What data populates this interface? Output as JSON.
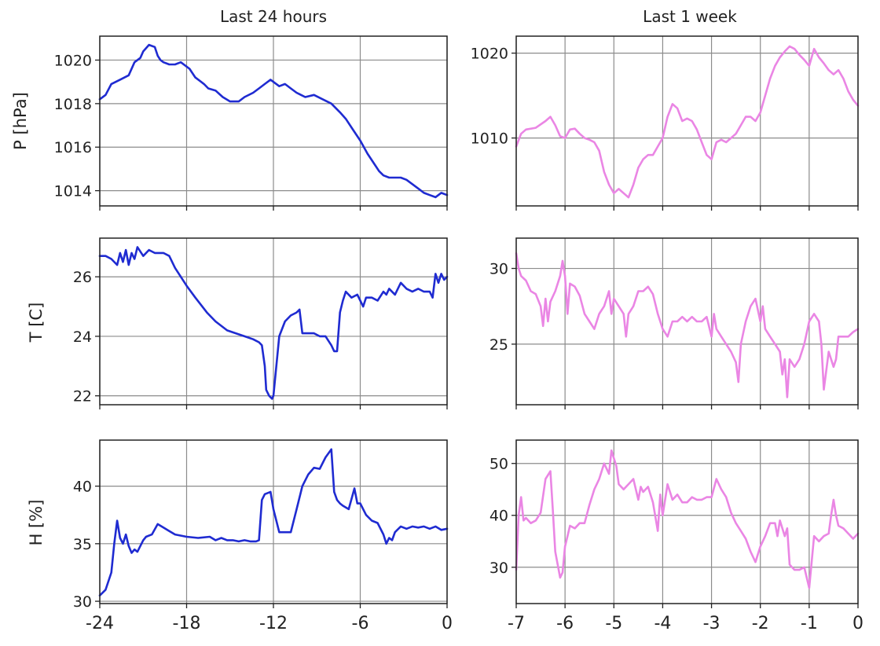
{
  "figure": {
    "columns": [
      {
        "title": "Last 24 hours",
        "color": "#1f2bd1"
      },
      {
        "title": "Last 1 week",
        "color": "#ea86e4"
      }
    ],
    "row_labels": [
      "P [hPa]",
      "T [C]",
      "H [%]"
    ]
  },
  "chart_data": [
    {
      "type": "line",
      "title": "Last 24 hours",
      "xlabel": "",
      "ylabel": "P [hPa]",
      "xlim": [
        -24,
        0
      ],
      "ylim": [
        1013.3,
        1021.1
      ],
      "grid": true,
      "xticks": [
        -24,
        -18,
        -12,
        -6,
        0
      ],
      "yticks": [
        1014,
        1016,
        1018,
        1020
      ],
      "xtick_labels_shown": false,
      "series": [
        {
          "color": "#1f2bd1",
          "x": [
            -24,
            -23.6,
            -23.2,
            -22.6,
            -22,
            -21.6,
            -21.2,
            -21,
            -20.6,
            -20.2,
            -20,
            -19.8,
            -19.6,
            -19.2,
            -18.8,
            -18.4,
            -17.8,
            -17.4,
            -16.8,
            -16.5,
            -16,
            -15.5,
            -15,
            -14.4,
            -14,
            -13.4,
            -13,
            -12.6,
            -12.2,
            -11.6,
            -11.2,
            -10.8,
            -10.4,
            -9.8,
            -9.2,
            -8.6,
            -8,
            -7.4,
            -7,
            -6.5,
            -6,
            -5.5,
            -5,
            -4.7,
            -4.4,
            -4,
            -3.6,
            -3.2,
            -2.8,
            -2.4,
            -2,
            -1.6,
            -1.2,
            -0.8,
            -0.4,
            0
          ],
          "y": [
            1018.2,
            1018.4,
            1018.9,
            1019.1,
            1019.3,
            1019.9,
            1020.1,
            1020.4,
            1020.7,
            1020.6,
            1020.2,
            1020.0,
            1019.9,
            1019.8,
            1019.8,
            1019.9,
            1019.6,
            1019.2,
            1018.9,
            1018.7,
            1018.6,
            1018.3,
            1018.1,
            1018.1,
            1018.3,
            1018.5,
            1018.7,
            1018.9,
            1019.1,
            1018.8,
            1018.9,
            1018.7,
            1018.5,
            1018.3,
            1018.4,
            1018.2,
            1018.0,
            1017.6,
            1017.3,
            1016.8,
            1016.3,
            1015.7,
            1015.2,
            1014.9,
            1014.7,
            1014.6,
            1014.6,
            1014.6,
            1014.5,
            1014.3,
            1014.1,
            1013.9,
            1013.8,
            1013.7,
            1013.9,
            1013.8
          ]
        }
      ]
    },
    {
      "type": "line",
      "title": "Last 1 week",
      "xlabel": "",
      "ylabel": "",
      "xlim": [
        -7,
        0
      ],
      "ylim": [
        1002,
        1022
      ],
      "grid": true,
      "xticks": [
        -7,
        -6,
        -5,
        -4,
        -3,
        -2,
        -1,
        0
      ],
      "yticks": [
        1010,
        1020
      ],
      "xtick_labels_shown": false,
      "series": [
        {
          "color": "#ea86e4",
          "x": [
            -7,
            -6.9,
            -6.8,
            -6.6,
            -6.4,
            -6.3,
            -6.2,
            -6.1,
            -6,
            -5.9,
            -5.8,
            -5.7,
            -5.6,
            -5.5,
            -5.4,
            -5.3,
            -5.2,
            -5.1,
            -5,
            -4.9,
            -4.8,
            -4.7,
            -4.6,
            -4.5,
            -4.4,
            -4.3,
            -4.2,
            -4.1,
            -4,
            -3.9,
            -3.8,
            -3.7,
            -3.6,
            -3.5,
            -3.4,
            -3.3,
            -3.2,
            -3.1,
            -3,
            -2.9,
            -2.8,
            -2.7,
            -2.6,
            -2.5,
            -2.4,
            -2.3,
            -2.2,
            -2.1,
            -2,
            -1.9,
            -1.8,
            -1.7,
            -1.6,
            -1.5,
            -1.4,
            -1.3,
            -1.2,
            -1.1,
            -1,
            -0.9,
            -0.8,
            -0.7,
            -0.6,
            -0.5,
            -0.4,
            -0.3,
            -0.2,
            -0.1,
            0
          ],
          "y": [
            1009,
            1010.5,
            1011,
            1011.2,
            1012,
            1012.5,
            1011.5,
            1010.2,
            1010,
            1011,
            1011.1,
            1010.5,
            1010,
            1009.8,
            1009.5,
            1008.5,
            1006,
            1004.5,
            1003.5,
            1004,
            1003.5,
            1003,
            1004.5,
            1006.5,
            1007.5,
            1008,
            1008,
            1009,
            1010,
            1012.5,
            1014,
            1013.5,
            1012,
            1012.3,
            1012,
            1011,
            1009.5,
            1008,
            1007.5,
            1009.5,
            1009.8,
            1009.5,
            1010,
            1010.5,
            1011.5,
            1012.5,
            1012.5,
            1012,
            1013,
            1015,
            1017,
            1018.5,
            1019.5,
            1020.2,
            1020.8,
            1020.5,
            1019.8,
            1019.2,
            1018.5,
            1020.5,
            1019.5,
            1018.8,
            1018,
            1017.5,
            1018,
            1017,
            1015.5,
            1014.5,
            1013.8
          ]
        }
      ]
    },
    {
      "type": "line",
      "title": "",
      "xlabel": "",
      "ylabel": "T [C]",
      "xlim": [
        -24,
        0
      ],
      "ylim": [
        21.7,
        27.3
      ],
      "grid": true,
      "xticks": [
        -24,
        -18,
        -12,
        -6,
        0
      ],
      "yticks": [
        22,
        24,
        26
      ],
      "xtick_labels_shown": false,
      "series": [
        {
          "color": "#1f2bd1",
          "x": [
            -24,
            -23.6,
            -23.2,
            -22.8,
            -22.6,
            -22.4,
            -22.2,
            -22,
            -21.8,
            -21.6,
            -21.4,
            -21,
            -20.6,
            -20.2,
            -19.8,
            -19.6,
            -19.2,
            -18.8,
            -18,
            -17.4,
            -16.6,
            -16,
            -15.2,
            -14.6,
            -14,
            -13.4,
            -13,
            -12.8,
            -12.6,
            -12.5,
            -12.3,
            -12.1,
            -12,
            -11.6,
            -11.2,
            -10.8,
            -10.4,
            -10.2,
            -10,
            -9.6,
            -9.2,
            -8.8,
            -8.4,
            -8,
            -7.8,
            -7.6,
            -7.4,
            -7.2,
            -7,
            -6.6,
            -6.2,
            -6,
            -5.8,
            -5.6,
            -5.2,
            -4.8,
            -4.4,
            -4.2,
            -4,
            -3.6,
            -3.2,
            -2.8,
            -2.4,
            -2,
            -1.6,
            -1.2,
            -1,
            -0.8,
            -0.6,
            -0.4,
            -0.2,
            0
          ],
          "y": [
            26.7,
            26.7,
            26.6,
            26.4,
            26.8,
            26.5,
            26.9,
            26.4,
            26.8,
            26.6,
            27.0,
            26.7,
            26.9,
            26.8,
            26.8,
            26.8,
            26.7,
            26.3,
            25.7,
            25.3,
            24.8,
            24.5,
            24.2,
            24.1,
            24.0,
            23.9,
            23.8,
            23.7,
            23.0,
            22.2,
            22.0,
            21.9,
            22.0,
            24.0,
            24.5,
            24.7,
            24.8,
            24.9,
            24.1,
            24.1,
            24.1,
            24.0,
            24.0,
            23.7,
            23.5,
            23.5,
            24.8,
            25.2,
            25.5,
            25.3,
            25.4,
            25.2,
            25.0,
            25.3,
            25.3,
            25.2,
            25.5,
            25.4,
            25.6,
            25.4,
            25.8,
            25.6,
            25.5,
            25.6,
            25.5,
            25.5,
            25.3,
            26.1,
            25.8,
            26.1,
            25.9,
            26.0
          ]
        }
      ]
    },
    {
      "type": "line",
      "title": "",
      "xlabel": "",
      "ylabel": "",
      "xlim": [
        -7,
        0
      ],
      "ylim": [
        21,
        32
      ],
      "grid": true,
      "xticks": [
        -7,
        -6,
        -5,
        -4,
        -3,
        -2,
        -1,
        0
      ],
      "yticks": [
        25,
        30
      ],
      "xtick_labels_shown": false,
      "series": [
        {
          "color": "#ea86e4",
          "x": [
            -7,
            -6.95,
            -6.9,
            -6.8,
            -6.7,
            -6.6,
            -6.5,
            -6.45,
            -6.4,
            -6.35,
            -6.3,
            -6.2,
            -6.1,
            -6.05,
            -6,
            -5.95,
            -5.9,
            -5.8,
            -5.7,
            -5.6,
            -5.5,
            -5.4,
            -5.3,
            -5.2,
            -5.1,
            -5.05,
            -5,
            -4.9,
            -4.8,
            -4.75,
            -4.7,
            -4.6,
            -4.5,
            -4.4,
            -4.3,
            -4.2,
            -4.1,
            -4,
            -3.9,
            -3.8,
            -3.7,
            -3.6,
            -3.5,
            -3.4,
            -3.3,
            -3.2,
            -3.1,
            -3,
            -2.95,
            -2.9,
            -2.8,
            -2.7,
            -2.6,
            -2.5,
            -2.45,
            -2.4,
            -2.3,
            -2.2,
            -2.1,
            -2,
            -1.95,
            -1.9,
            -1.8,
            -1.7,
            -1.6,
            -1.55,
            -1.5,
            -1.45,
            -1.4,
            -1.3,
            -1.2,
            -1.1,
            -1,
            -0.9,
            -0.8,
            -0.75,
            -0.7,
            -0.6,
            -0.5,
            -0.45,
            -0.4,
            -0.3,
            -0.2,
            -0.1,
            0
          ],
          "y": [
            31,
            30,
            29.5,
            29.2,
            28.5,
            28.3,
            27.5,
            26.2,
            28,
            26.5,
            27.8,
            28.5,
            29.5,
            30.5,
            29.5,
            27,
            29,
            28.8,
            28.2,
            27,
            26.5,
            26,
            27,
            27.5,
            28.5,
            27,
            28,
            27.5,
            27,
            25.5,
            27,
            27.5,
            28.5,
            28.5,
            28.8,
            28.3,
            27,
            26,
            25.5,
            26.5,
            26.5,
            26.8,
            26.5,
            26.8,
            26.5,
            26.5,
            26.8,
            25.5,
            27,
            26,
            25.5,
            25,
            24.5,
            23.8,
            22.5,
            25,
            26.5,
            27.5,
            28,
            26.5,
            27.5,
            26,
            25.5,
            25,
            24.5,
            23,
            24,
            21.5,
            24,
            23.5,
            24,
            25,
            26.5,
            27,
            26.5,
            25,
            22,
            24.5,
            23.5,
            24,
            25.5,
            25.5,
            25.5,
            25.8,
            26
          ]
        }
      ]
    },
    {
      "type": "line",
      "title": "",
      "xlabel": "",
      "ylabel": "H [%]",
      "xlim": [
        -24,
        0
      ],
      "ylim": [
        29.8,
        44
      ],
      "grid": true,
      "xticks": [
        -24,
        -18,
        -12,
        -6,
        0
      ],
      "yticks": [
        30,
        35,
        40
      ],
      "xtick_labels": [
        "-24",
        "-18",
        "-12",
        "-6",
        "0"
      ],
      "series": [
        {
          "color": "#1f2bd1",
          "x": [
            -24,
            -23.6,
            -23.2,
            -23,
            -22.8,
            -22.6,
            -22.4,
            -22.2,
            -22,
            -21.8,
            -21.6,
            -21.4,
            -21,
            -20.8,
            -20.4,
            -20,
            -19.6,
            -19.2,
            -18.8,
            -18,
            -17.2,
            -16.4,
            -16,
            -15.6,
            -15.2,
            -14.8,
            -14.4,
            -14,
            -13.6,
            -13.2,
            -13,
            -12.8,
            -12.6,
            -12.2,
            -12,
            -11.6,
            -11.2,
            -10.8,
            -10.4,
            -10,
            -9.6,
            -9.2,
            -8.8,
            -8.4,
            -8,
            -7.8,
            -7.6,
            -7.4,
            -7.2,
            -6.8,
            -6.4,
            -6.2,
            -6,
            -5.6,
            -5.2,
            -4.8,
            -4.4,
            -4.2,
            -4,
            -3.8,
            -3.6,
            -3.2,
            -2.8,
            -2.4,
            -2,
            -1.6,
            -1.2,
            -0.8,
            -0.4,
            0
          ],
          "y": [
            30.5,
            31,
            32.5,
            35,
            37,
            35.5,
            35,
            35.8,
            34.8,
            34.2,
            34.5,
            34.3,
            35.3,
            35.6,
            35.8,
            36.7,
            36.4,
            36.1,
            35.8,
            35.6,
            35.5,
            35.6,
            35.3,
            35.5,
            35.3,
            35.3,
            35.2,
            35.3,
            35.2,
            35.2,
            35.3,
            38.8,
            39.3,
            39.5,
            38,
            36,
            36,
            36,
            38,
            40,
            41,
            41.6,
            41.5,
            42.5,
            43.2,
            39.5,
            38.8,
            38.5,
            38.3,
            38,
            39.8,
            38.5,
            38.5,
            37.5,
            37,
            36.8,
            35.8,
            35,
            35.5,
            35.3,
            36,
            36.5,
            36.3,
            36.5,
            36.4,
            36.5,
            36.3,
            36.5,
            36.2,
            36.3
          ]
        }
      ]
    },
    {
      "type": "line",
      "title": "",
      "xlabel": "",
      "ylabel": "",
      "xlim": [
        -7,
        0
      ],
      "ylim": [
        23,
        54.5
      ],
      "grid": true,
      "xticks": [
        -7,
        -6,
        -5,
        -4,
        -3,
        -2,
        -1,
        0
      ],
      "yticks": [
        30,
        40,
        50
      ],
      "xtick_labels": [
        "-7",
        "-6",
        "-5",
        "-4",
        "-3",
        "-2",
        "-1",
        "0"
      ],
      "series": [
        {
          "color": "#ea86e4",
          "x": [
            -7,
            -6.95,
            -6.9,
            -6.85,
            -6.8,
            -6.7,
            -6.6,
            -6.5,
            -6.4,
            -6.3,
            -6.25,
            -6.2,
            -6.1,
            -6.05,
            -6,
            -5.95,
            -5.9,
            -5.8,
            -5.7,
            -5.6,
            -5.5,
            -5.4,
            -5.3,
            -5.2,
            -5.1,
            -5.05,
            -5,
            -4.95,
            -4.9,
            -4.8,
            -4.7,
            -4.6,
            -4.5,
            -4.45,
            -4.4,
            -4.3,
            -4.2,
            -4.1,
            -4.05,
            -4,
            -3.9,
            -3.8,
            -3.7,
            -3.6,
            -3.5,
            -3.4,
            -3.3,
            -3.2,
            -3.1,
            -3,
            -2.9,
            -2.8,
            -2.7,
            -2.6,
            -2.5,
            -2.4,
            -2.3,
            -2.2,
            -2.1,
            -2,
            -1.9,
            -1.8,
            -1.7,
            -1.65,
            -1.6,
            -1.5,
            -1.45,
            -1.4,
            -1.3,
            -1.2,
            -1.1,
            -1,
            -0.9,
            -0.8,
            -0.7,
            -0.6,
            -0.55,
            -0.5,
            -0.45,
            -0.4,
            -0.3,
            -0.2,
            -0.1,
            0
          ],
          "y": [
            29.5,
            40,
            43.5,
            39,
            39.5,
            38.5,
            39,
            40.5,
            47,
            48.5,
            41,
            33,
            28,
            29,
            34,
            36,
            38,
            37.5,
            38.5,
            38.5,
            42,
            45,
            47,
            50,
            48,
            52.5,
            51,
            49.5,
            46,
            45,
            46,
            47,
            43,
            45.5,
            44.5,
            45.5,
            42.5,
            37,
            44,
            40,
            46,
            43,
            44,
            42.5,
            42.5,
            43.5,
            43,
            43,
            43.5,
            43.5,
            47,
            45,
            43.5,
            40.5,
            38.5,
            37,
            35.5,
            33,
            31,
            34,
            36,
            38.5,
            38.5,
            36,
            39,
            36,
            37.5,
            30.5,
            29.5,
            29.5,
            30,
            26,
            36,
            35,
            36,
            36.5,
            40,
            43,
            40,
            38,
            37.5,
            36.5,
            35.5,
            36.5
          ]
        }
      ]
    }
  ]
}
